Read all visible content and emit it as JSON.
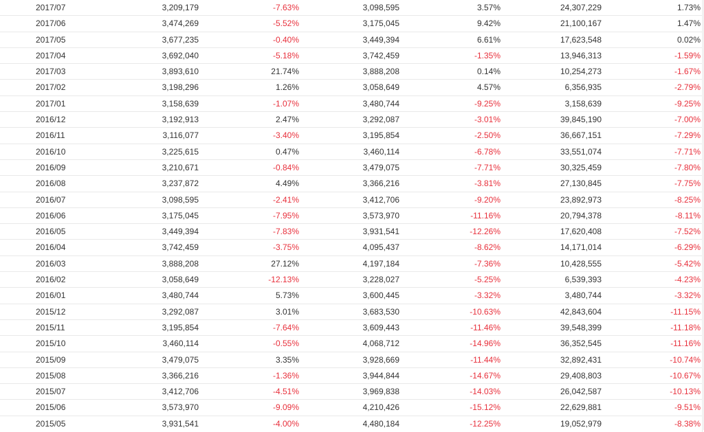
{
  "colors": {
    "text": "#333333",
    "negative": "#e8303c",
    "row_divider": "#e9e9e9"
  },
  "rows": [
    [
      "2017/07",
      "3,209,179",
      "-7.63%",
      "3,098,595",
      "3.57%",
      "24,307,229",
      "1.73%"
    ],
    [
      "2017/06",
      "3,474,269",
      "-5.52%",
      "3,175,045",
      "9.42%",
      "21,100,167",
      "1.47%"
    ],
    [
      "2017/05",
      "3,677,235",
      "-0.40%",
      "3,449,394",
      "6.61%",
      "17,623,548",
      "0.02%"
    ],
    [
      "2017/04",
      "3,692,040",
      "-5.18%",
      "3,742,459",
      "-1.35%",
      "13,946,313",
      "-1.59%"
    ],
    [
      "2017/03",
      "3,893,610",
      "21.74%",
      "3,888,208",
      "0.14%",
      "10,254,273",
      "-1.67%"
    ],
    [
      "2017/02",
      "3,198,296",
      "1.26%",
      "3,058,649",
      "4.57%",
      "6,356,935",
      "-2.79%"
    ],
    [
      "2017/01",
      "3,158,639",
      "-1.07%",
      "3,480,744",
      "-9.25%",
      "3,158,639",
      "-9.25%"
    ],
    [
      "2016/12",
      "3,192,913",
      "2.47%",
      "3,292,087",
      "-3.01%",
      "39,845,190",
      "-7.00%"
    ],
    [
      "2016/11",
      "3,116,077",
      "-3.40%",
      "3,195,854",
      "-2.50%",
      "36,667,151",
      "-7.29%"
    ],
    [
      "2016/10",
      "3,225,615",
      "0.47%",
      "3,460,114",
      "-6.78%",
      "33,551,074",
      "-7.71%"
    ],
    [
      "2016/09",
      "3,210,671",
      "-0.84%",
      "3,479,075",
      "-7.71%",
      "30,325,459",
      "-7.80%"
    ],
    [
      "2016/08",
      "3,237,872",
      "4.49%",
      "3,366,216",
      "-3.81%",
      "27,130,845",
      "-7.75%"
    ],
    [
      "2016/07",
      "3,098,595",
      "-2.41%",
      "3,412,706",
      "-9.20%",
      "23,892,973",
      "-8.25%"
    ],
    [
      "2016/06",
      "3,175,045",
      "-7.95%",
      "3,573,970",
      "-11.16%",
      "20,794,378",
      "-8.11%"
    ],
    [
      "2016/05",
      "3,449,394",
      "-7.83%",
      "3,931,541",
      "-12.26%",
      "17,620,408",
      "-7.52%"
    ],
    [
      "2016/04",
      "3,742,459",
      "-3.75%",
      "4,095,437",
      "-8.62%",
      "14,171,014",
      "-6.29%"
    ],
    [
      "2016/03",
      "3,888,208",
      "27.12%",
      "4,197,184",
      "-7.36%",
      "10,428,555",
      "-5.42%"
    ],
    [
      "2016/02",
      "3,058,649",
      "-12.13%",
      "3,228,027",
      "-5.25%",
      "6,539,393",
      "-4.23%"
    ],
    [
      "2016/01",
      "3,480,744",
      "5.73%",
      "3,600,445",
      "-3.32%",
      "3,480,744",
      "-3.32%"
    ],
    [
      "2015/12",
      "3,292,087",
      "3.01%",
      "3,683,530",
      "-10.63%",
      "42,843,604",
      "-11.15%"
    ],
    [
      "2015/11",
      "3,195,854",
      "-7.64%",
      "3,609,443",
      "-11.46%",
      "39,548,399",
      "-11.18%"
    ],
    [
      "2015/10",
      "3,460,114",
      "-0.55%",
      "4,068,712",
      "-14.96%",
      "36,352,545",
      "-11.16%"
    ],
    [
      "2015/09",
      "3,479,075",
      "3.35%",
      "3,928,669",
      "-11.44%",
      "32,892,431",
      "-10.74%"
    ],
    [
      "2015/08",
      "3,366,216",
      "-1.36%",
      "3,944,844",
      "-14.67%",
      "29,408,803",
      "-10.67%"
    ],
    [
      "2015/07",
      "3,412,706",
      "-4.51%",
      "3,969,838",
      "-14.03%",
      "26,042,587",
      "-10.13%"
    ],
    [
      "2015/06",
      "3,573,970",
      "-9.09%",
      "4,210,426",
      "-15.12%",
      "22,629,881",
      "-9.51%"
    ],
    [
      "2015/05",
      "3,931,541",
      "-4.00%",
      "4,480,184",
      "-12.25%",
      "19,052,979",
      "-8.38%"
    ]
  ]
}
